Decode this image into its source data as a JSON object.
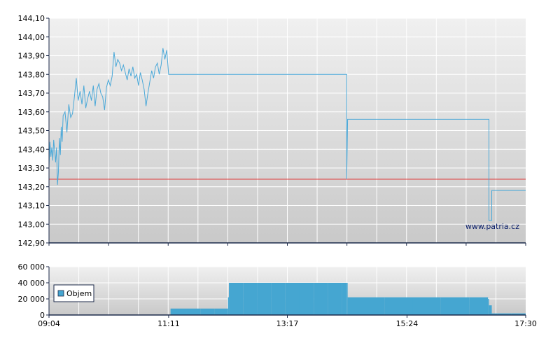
{
  "colors": {
    "price_line": "#4aa8d8",
    "reference_line": "#e03b3b",
    "volume_bar": "#45a6d1",
    "axis": "#1c2a4a",
    "grid": "#ffffff"
  },
  "watermark": "www.patria.cz",
  "chart_data": [
    {
      "type": "line",
      "panel": "price",
      "title": "",
      "xlabel": "",
      "ylabel": "",
      "ylim": [
        142.9,
        144.1
      ],
      "xlim": [
        "09:04",
        "17:30"
      ],
      "y_tick_labels": [
        "144,10",
        "144,00",
        "143,90",
        "143,80",
        "143,70",
        "143,60",
        "143,50",
        "143,40",
        "143,30",
        "143,20",
        "143,10",
        "143,00",
        "142,90"
      ],
      "y_tick_values": [
        144.1,
        144.0,
        143.9,
        143.8,
        143.7,
        143.6,
        143.5,
        143.4,
        143.3,
        143.2,
        143.1,
        143.0,
        142.9
      ],
      "reference_line": 143.24,
      "grid": true,
      "series": [
        {
          "x": [
            "09:04",
            "09:05",
            "09:06",
            "09:07",
            "09:08",
            "09:09",
            "09:10",
            "09:11",
            "09:12",
            "09:13",
            "09:14",
            "09:15",
            "09:16",
            "09:17",
            "09:18",
            "09:19",
            "09:21",
            "09:23",
            "09:25",
            "09:27",
            "09:29",
            "09:31",
            "09:33",
            "09:35",
            "09:37",
            "09:39",
            "09:41",
            "09:43",
            "09:45",
            "09:47",
            "09:49",
            "09:51",
            "09:53",
            "09:55",
            "09:57",
            "09:59",
            "10:01",
            "10:03",
            "10:05",
            "10:07",
            "10:09",
            "10:11",
            "10:13",
            "10:15",
            "10:17",
            "10:19",
            "10:21",
            "10:23",
            "10:25",
            "10:27",
            "10:29",
            "10:31",
            "10:33",
            "10:35",
            "10:37",
            "10:39",
            "10:41",
            "10:43",
            "10:45",
            "10:47",
            "10:49",
            "10:51",
            "10:53",
            "10:55",
            "10:57",
            "10:59",
            "11:01",
            "11:03",
            "11:05",
            "11:07",
            "11:09",
            "11:11",
            "11:13",
            "11:15",
            "11:17",
            "11:19",
            "14:20",
            "14:20",
            "14:21",
            "16:51",
            "16:51",
            "16:54",
            "16:54",
            "17:30"
          ],
          "y": [
            143.31,
            143.44,
            143.36,
            143.41,
            143.34,
            143.45,
            143.39,
            143.33,
            143.41,
            143.21,
            143.28,
            143.46,
            143.37,
            143.52,
            143.44,
            143.58,
            143.6,
            143.49,
            143.64,
            143.57,
            143.59,
            143.68,
            143.78,
            143.66,
            143.71,
            143.64,
            143.74,
            143.62,
            143.67,
            143.71,
            143.66,
            143.74,
            143.63,
            143.72,
            143.75,
            143.7,
            143.68,
            143.61,
            143.73,
            143.77,
            143.74,
            143.79,
            143.92,
            143.84,
            143.88,
            143.86,
            143.82,
            143.85,
            143.81,
            143.77,
            143.83,
            143.79,
            143.84,
            143.78,
            143.8,
            143.74,
            143.81,
            143.77,
            143.72,
            143.63,
            143.7,
            143.76,
            143.82,
            143.78,
            143.84,
            143.86,
            143.8,
            143.85,
            143.94,
            143.88,
            143.93,
            143.8,
            143.8,
            143.8,
            143.8,
            143.8,
            143.8,
            143.24,
            143.56,
            143.56,
            143.02,
            143.02,
            143.18,
            143.18
          ]
        }
      ]
    },
    {
      "type": "bar",
      "panel": "volume",
      "title": "",
      "xlabel": "",
      "ylabel": "",
      "ylim": [
        0,
        60000
      ],
      "y_tick_labels": [
        "60 000",
        "40 000",
        "20 000",
        "0"
      ],
      "y_tick_values": [
        60000,
        40000,
        20000,
        0
      ],
      "x_tick_labels": [
        "09:04",
        "11:11",
        "13:17",
        "15:24",
        "17:30"
      ],
      "grid": true,
      "legend": "top-left",
      "series": [
        {
          "name": "Objem",
          "x": [
            "11:13",
            "11:30",
            "11:45",
            "12:00",
            "12:14",
            "12:15",
            "12:30",
            "12:45",
            "13:00",
            "13:15",
            "13:30",
            "13:45",
            "14:00",
            "14:15",
            "14:20",
            "14:21",
            "15:00",
            "15:30",
            "16:00",
            "16:30",
            "16:50",
            "16:51",
            "16:54",
            "17:00",
            "17:15",
            "17:30"
          ],
          "values": [
            8000,
            8000,
            8000,
            8000,
            22000,
            40000,
            40000,
            40000,
            40000,
            40000,
            40000,
            40000,
            40000,
            40000,
            40000,
            22000,
            22000,
            22000,
            22000,
            22000,
            20000,
            12000,
            2000,
            2000,
            2000,
            2000
          ]
        }
      ]
    }
  ]
}
